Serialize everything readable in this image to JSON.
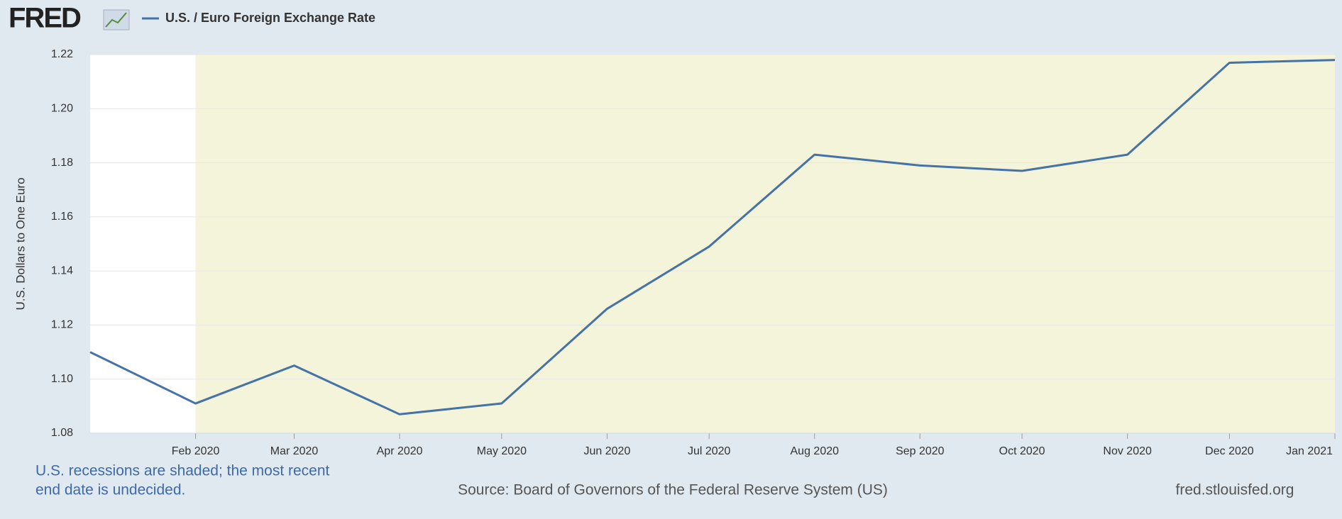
{
  "logo": "FRED",
  "chart_data": {
    "type": "line",
    "series": [
      {
        "name": "U.S. / Euro Foreign Exchange Rate",
        "color": "#4572a7",
        "values": [
          1.11,
          1.091,
          1.105,
          1.087,
          1.091,
          1.126,
          1.149,
          1.183,
          1.179,
          1.177,
          1.183,
          1.217,
          1.218
        ]
      }
    ],
    "x": [
      "2020-01",
      "2020-02",
      "2020-03",
      "2020-04",
      "2020-05",
      "2020-06",
      "2020-07",
      "2020-08",
      "2020-09",
      "2020-10",
      "2020-11",
      "2020-12",
      "2021-01"
    ],
    "xlim": [
      "2020-01",
      "2021-01"
    ],
    "xticks": [
      {
        "value": "2020-02",
        "label": "Feb 2020"
      },
      {
        "value": "2020-03",
        "label": "Mar 2020"
      },
      {
        "value": "2020-04",
        "label": "Apr 2020"
      },
      {
        "value": "2020-05",
        "label": "May 2020"
      },
      {
        "value": "2020-06",
        "label": "Jun 2020"
      },
      {
        "value": "2020-07",
        "label": "Jul 2020"
      },
      {
        "value": "2020-08",
        "label": "Aug 2020"
      },
      {
        "value": "2020-09",
        "label": "Sep 2020"
      },
      {
        "value": "2020-10",
        "label": "Oct 2020"
      },
      {
        "value": "2020-11",
        "label": "Nov 2020"
      },
      {
        "value": "2020-12",
        "label": "Dec 2020"
      },
      {
        "value": "2021-01",
        "label": "Jan 2021"
      }
    ],
    "ylim": [
      1.08,
      1.22
    ],
    "yticks": [
      {
        "value": 1.08,
        "label": "1.08"
      },
      {
        "value": 1.1,
        "label": "1.10"
      },
      {
        "value": 1.12,
        "label": "1.12"
      },
      {
        "value": 1.14,
        "label": "1.14"
      },
      {
        "value": 1.16,
        "label": "1.16"
      },
      {
        "value": 1.18,
        "label": "1.18"
      },
      {
        "value": 1.2,
        "label": "1.20"
      },
      {
        "value": 1.22,
        "label": "1.22"
      }
    ],
    "ylabel": "U.S. Dollars to One Euro",
    "grid": true,
    "recession": {
      "start": "2020-02",
      "end": "2021-01",
      "color": "#f4f4db"
    },
    "notes": [
      "U.S. recessions are shaded; the most recent",
      "end date is undecided."
    ],
    "source": "Source: Board of Governors of the Federal Reserve System (US)",
    "site": "fred.stlouisfed.org"
  }
}
